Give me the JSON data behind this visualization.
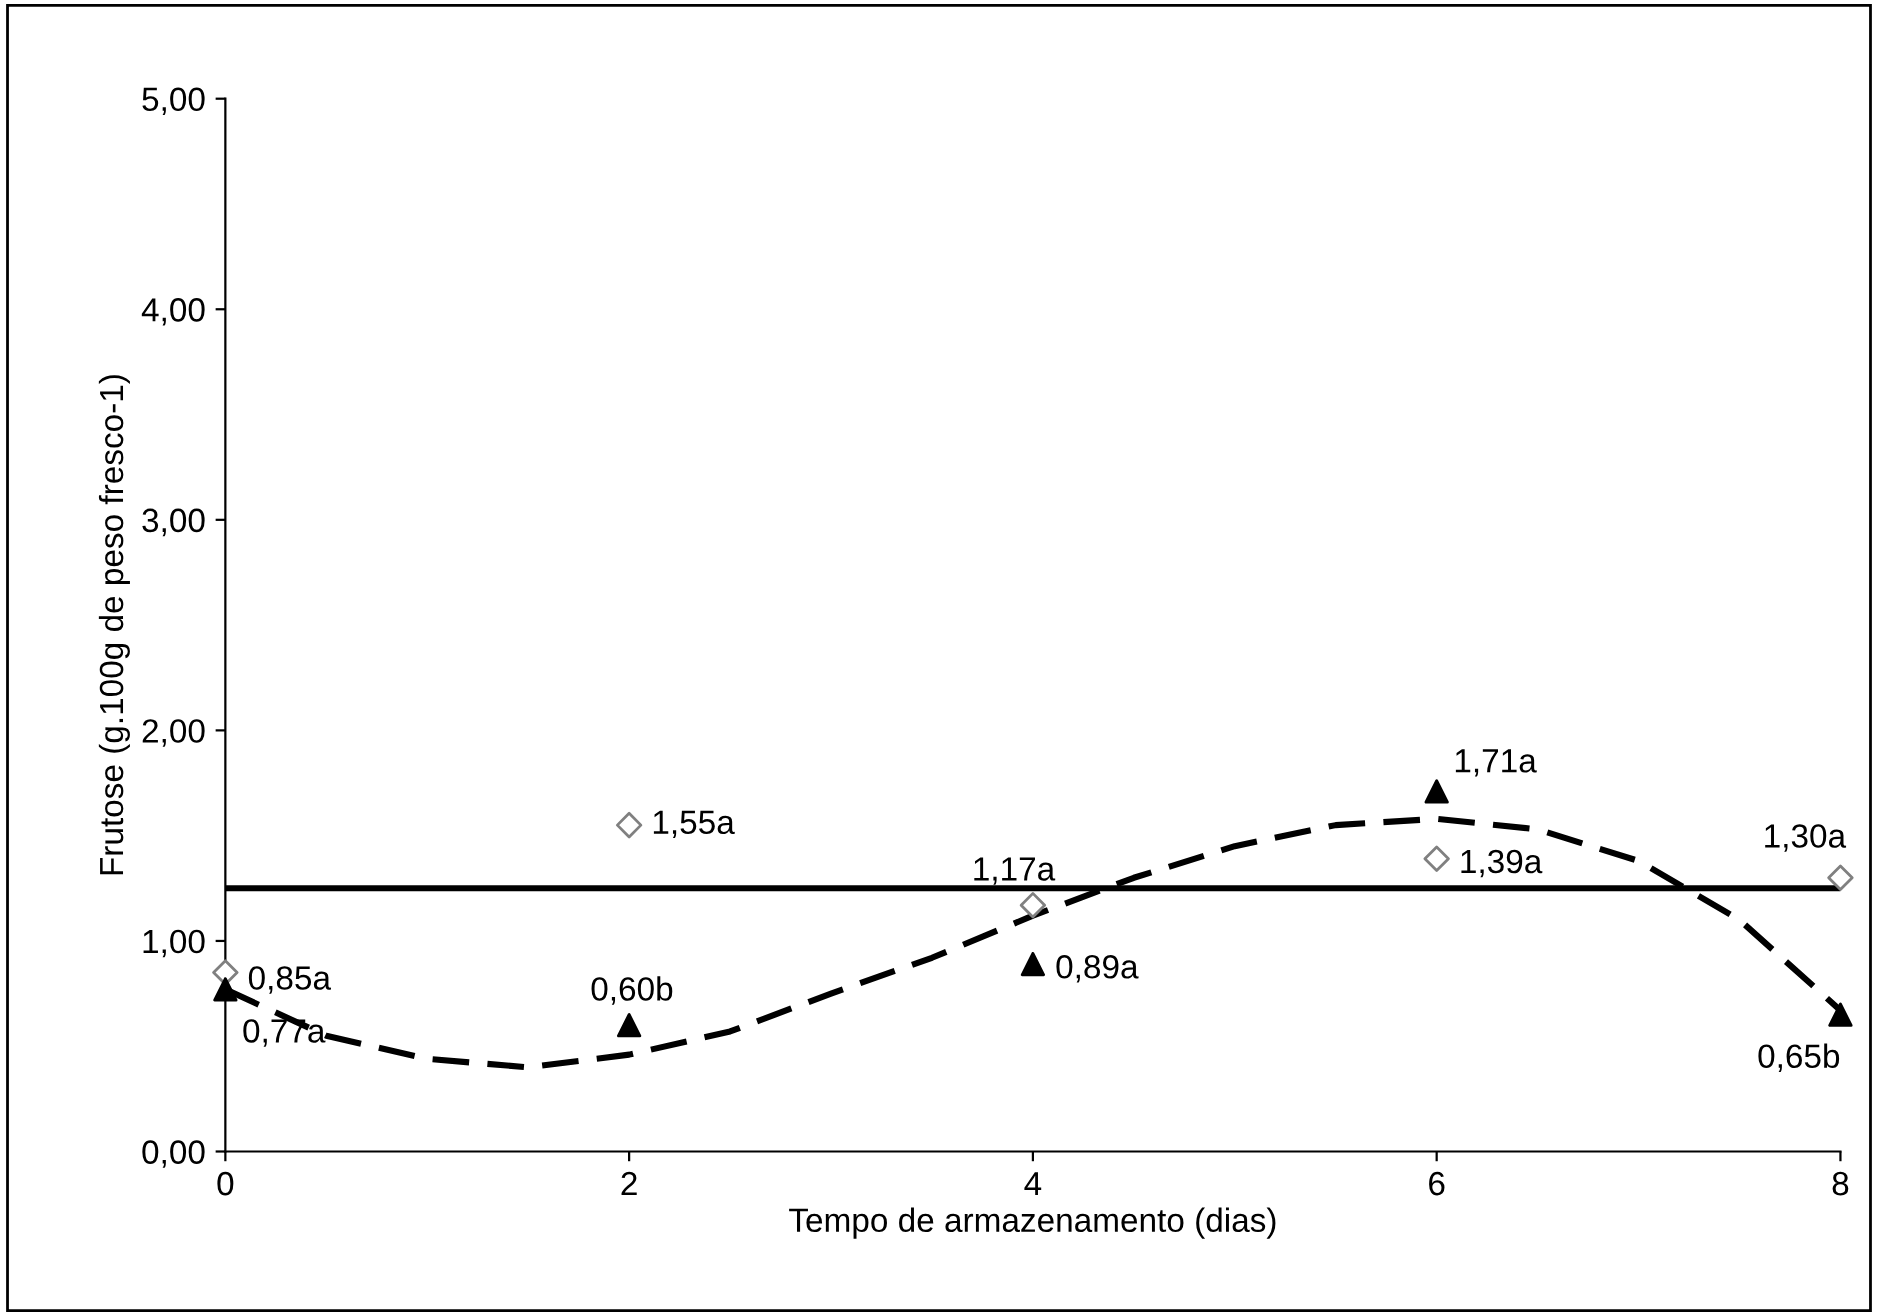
{
  "chart_data": {
    "type": "scatter",
    "xlabel": "Tempo de armazenamento (dias)",
    "ylabel": "Frutose (g.100g de peso fresco-1)",
    "xlim": [
      0,
      8
    ],
    "xticks": [
      0,
      2,
      4,
      6,
      8
    ],
    "ylim": [
      0,
      5
    ],
    "yticks": [
      {
        "value": 0,
        "label": "0,00"
      },
      {
        "value": 1,
        "label": "1,00"
      },
      {
        "value": 2,
        "label": "2,00"
      },
      {
        "value": 3,
        "label": "3,00"
      },
      {
        "value": 4,
        "label": "4,00"
      },
      {
        "value": 5,
        "label": "5,00"
      }
    ],
    "grid": false,
    "legend": false,
    "series": [
      {
        "marker": "diamond",
        "color": "#808080",
        "x": [
          0,
          2,
          4,
          6,
          8
        ],
        "values": [
          0.85,
          1.55,
          1.17,
          1.39,
          1.3
        ],
        "value_labels": [
          "0,85a",
          "1,55a",
          "1,17a",
          "1,39a",
          "1,30a"
        ]
      },
      {
        "marker": "triangle",
        "color": "#000000",
        "x": [
          0,
          2,
          4,
          6,
          8
        ],
        "values": [
          0.77,
          0.6,
          0.89,
          1.71,
          0.65
        ],
        "value_labels": [
          "0,77a",
          "0,60b",
          "0,89a",
          "1,71a",
          "0,65b"
        ]
      },
      {
        "type": "line",
        "line_style": "solid",
        "marker": "none",
        "color": "#000000",
        "x": [
          0,
          8
        ],
        "values": [
          1.25,
          1.25
        ]
      },
      {
        "type": "line",
        "line_style": "dashed",
        "marker": "none",
        "color": "#000000",
        "x": [
          0,
          0.5,
          1,
          1.5,
          2,
          2.5,
          3,
          3.5,
          4,
          4.5,
          5,
          5.5,
          6,
          6.5,
          7,
          7.5,
          8
        ],
        "values": [
          0.77,
          0.55,
          0.44,
          0.4,
          0.46,
          0.57,
          0.75,
          0.92,
          1.12,
          1.3,
          1.45,
          1.55,
          1.58,
          1.53,
          1.38,
          1.1,
          0.67
        ]
      }
    ]
  }
}
